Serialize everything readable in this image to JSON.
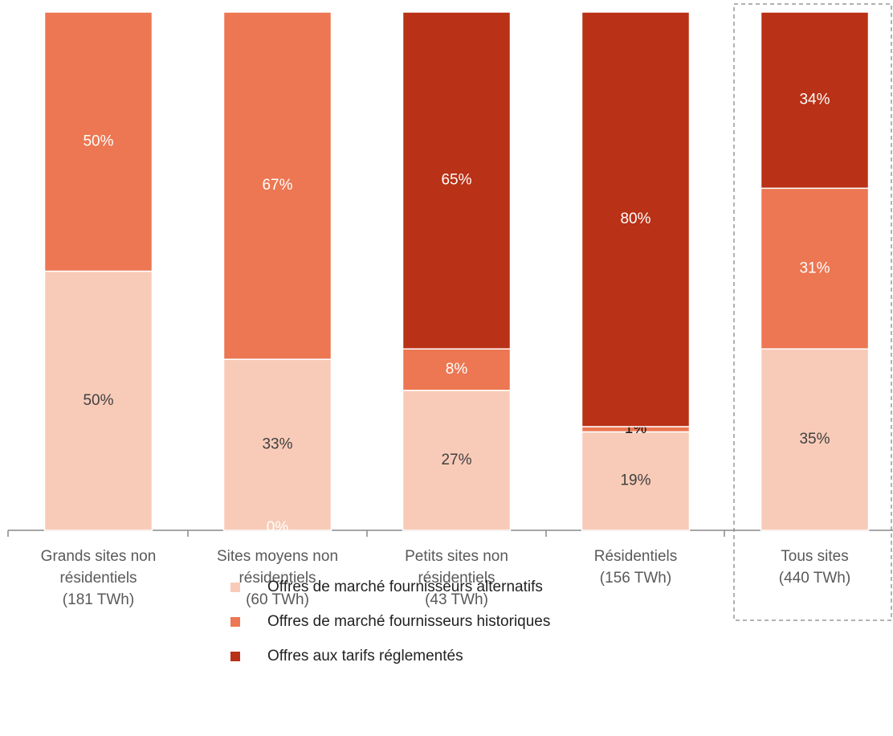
{
  "chart_data": {
    "type": "stacked_bar",
    "categories": [
      [
        "Grands sites non",
        "résidentiels",
        "(181 TWh)"
      ],
      [
        "Sites moyens non",
        "résidentiels",
        "(60 TWh)"
      ],
      [
        "Petits sites non",
        "résidentiels",
        "(43 TWh)"
      ],
      [
        "Résidentiels",
        "(156 TWh)"
      ],
      [
        "Tous sites",
        "(440 TWh)"
      ]
    ],
    "ylim": [
      0,
      100
    ],
    "series": [
      {
        "name": "Offres de marché fournisseurs alternatifs",
        "color": "#f8cbb8",
        "values": [
          50,
          33,
          27,
          19,
          35
        ],
        "value_labels": [
          "50%",
          "33%",
          "27%",
          "19%",
          "35%"
        ]
      },
      {
        "name": "Offres de marché fournisseurs historiques",
        "color": "#ec7752",
        "values": [
          50,
          67,
          8,
          1,
          31
        ],
        "value_labels": [
          "50%",
          "67%",
          "8%",
          "1%",
          "31%"
        ]
      },
      {
        "name": "Offres aux tarifs réglementés",
        "color": "#b93116",
        "values": [
          null,
          0,
          65,
          80,
          34
        ],
        "value_labels": [
          null,
          "0%",
          "65%",
          "80%",
          "34%"
        ]
      }
    ]
  }
}
